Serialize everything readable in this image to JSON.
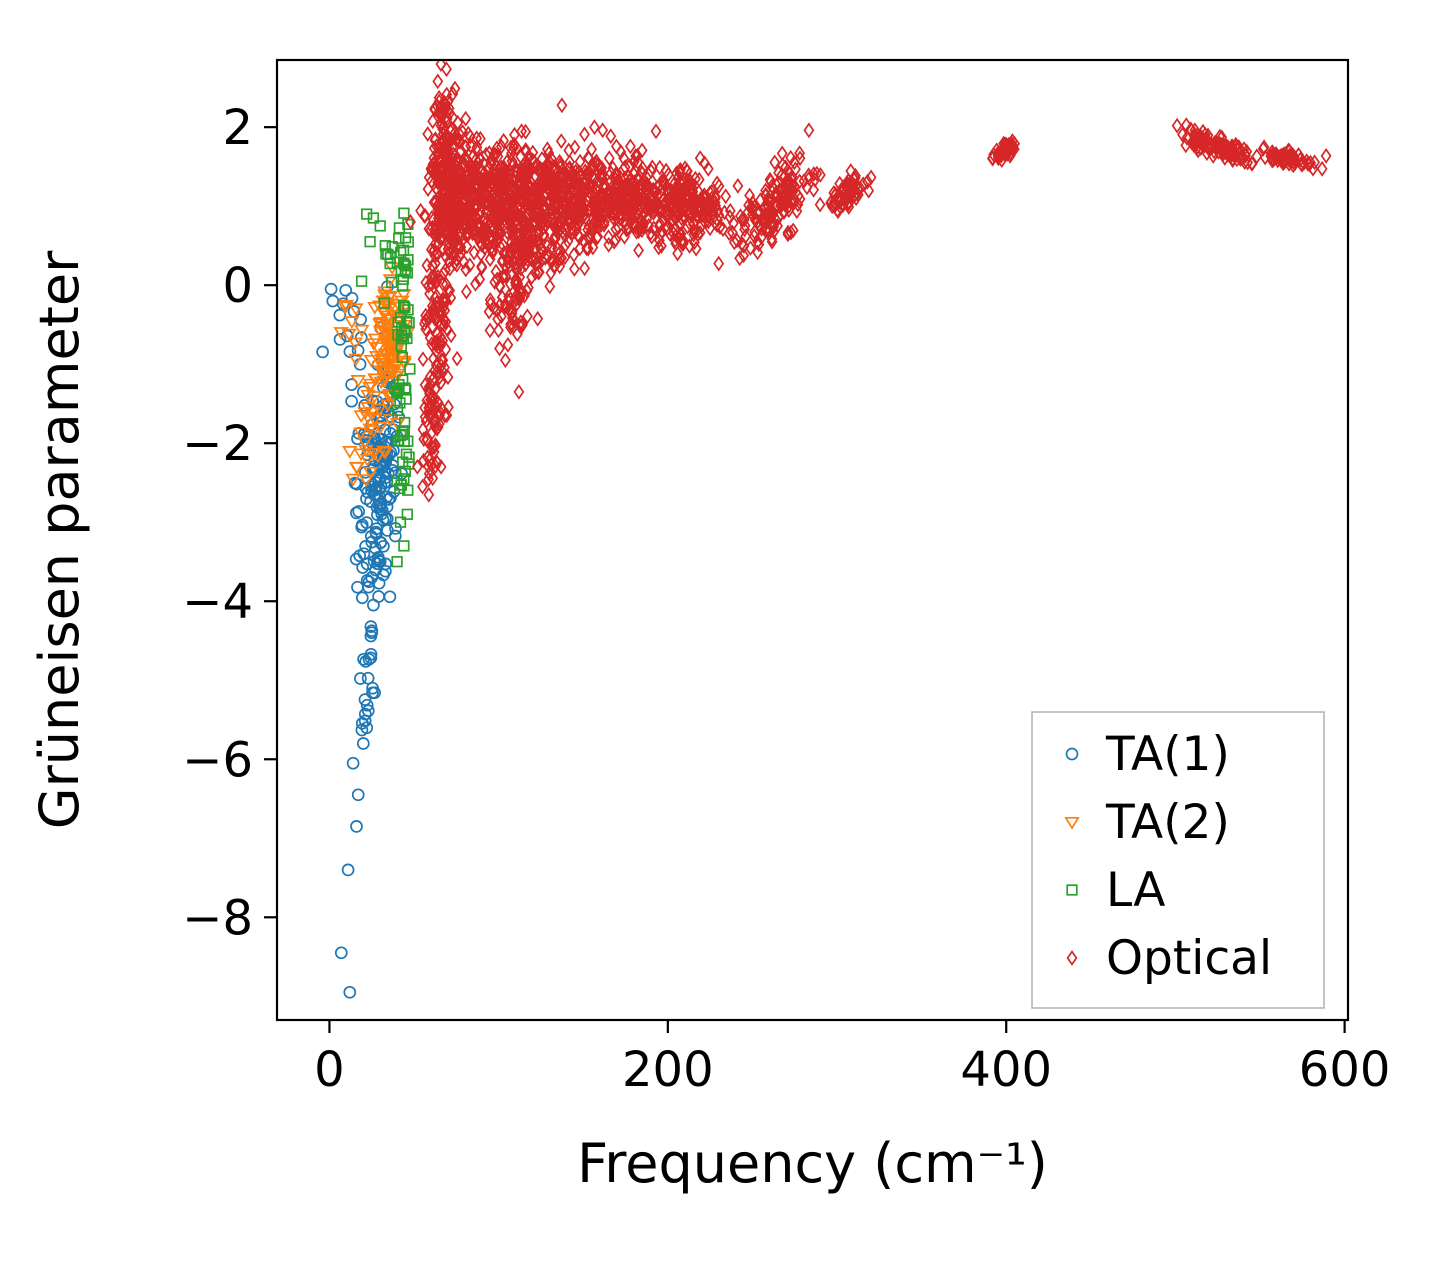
{
  "figure": {
    "background": "#ffffff"
  },
  "chart_data": {
    "type": "scatter",
    "title": "",
    "xlabel": "Frequency (cm⁻¹)",
    "ylabel": "Grüneisen parameter",
    "xlim": [
      -31,
      602
    ],
    "ylim": [
      -9.3,
      2.85
    ],
    "xticks": [
      0,
      200,
      400,
      600
    ],
    "yticks": [
      2,
      0,
      -2,
      -4,
      -6,
      -8
    ],
    "grid": false,
    "legend": {
      "position": "lower right",
      "border_color": "#b0b0b0",
      "background": "#ffffff"
    },
    "series": [
      {
        "name": "TA(1)",
        "marker": "circle",
        "color": "#1f77b4",
        "clusters": [
          {
            "n": 60,
            "cx": 33,
            "cy": -1.9,
            "sx": 4,
            "sy": 0.5
          },
          {
            "n": 45,
            "cx": 30,
            "cy": -2.6,
            "sx": 5,
            "sy": 0.5
          },
          {
            "n": 25,
            "cx": 22,
            "cy": -2.1,
            "sx": 5,
            "sy": 0.6
          },
          {
            "n": 20,
            "cx": 27,
            "cy": -3.2,
            "sx": 4,
            "sy": 0.3
          },
          {
            "n": 12,
            "cx": 24,
            "cy": -4.0,
            "sx": 4,
            "sy": 0.25
          },
          {
            "n": 10,
            "cx": 22,
            "cy": -4.7,
            "sx": 3,
            "sy": 0.25
          },
          {
            "n": 8,
            "cx": 21,
            "cy": -5.4,
            "sx": 2,
            "sy": 0.2
          },
          {
            "n": 10,
            "cx": 15,
            "cy": -1.0,
            "sx": 5,
            "sy": 0.5
          },
          {
            "n": 6,
            "cx": 8,
            "cy": -0.45,
            "sx": 4,
            "sy": 0.25
          }
        ],
        "points": [
          [
            1,
            -0.05
          ],
          [
            2,
            -0.2
          ],
          [
            14,
            -6.05
          ],
          [
            17,
            -6.45
          ],
          [
            16,
            -6.85
          ],
          [
            11,
            -7.4
          ],
          [
            7,
            -8.45
          ],
          [
            12,
            -8.95
          ],
          [
            25,
            -3.7
          ],
          [
            30,
            -3.5
          ],
          [
            20,
            -5.8
          ],
          [
            22,
            -5.6
          ]
        ]
      },
      {
        "name": "TA(2)",
        "marker": "triangle-down",
        "color": "#ff7f0e",
        "clusters": [
          {
            "n": 70,
            "cx": 36,
            "cy": -0.75,
            "sx": 4,
            "sy": 0.35
          },
          {
            "n": 30,
            "cx": 30,
            "cy": -1.4,
            "sx": 5,
            "sy": 0.4
          },
          {
            "n": 12,
            "cx": 22,
            "cy": -1.9,
            "sx": 4,
            "sy": 0.3
          },
          {
            "n": 8,
            "cx": 14,
            "cy": -0.5,
            "sx": 3,
            "sy": 0.3
          },
          {
            "n": 10,
            "cx": 34,
            "cy": -0.25,
            "sx": 4,
            "sy": 0.15
          }
        ],
        "points": [
          [
            12,
            -2.1
          ],
          [
            16,
            -2.3
          ],
          [
            14,
            -2.45
          ],
          [
            10,
            -0.25
          ],
          [
            44,
            -0.35
          ],
          [
            46,
            -0.6
          ]
        ]
      },
      {
        "name": "LA",
        "marker": "square",
        "color": "#2ca02c",
        "clusters": [
          {
            "n": 45,
            "cx": 43,
            "cy": -0.7,
            "sx": 2.5,
            "sy": 0.8
          },
          {
            "n": 15,
            "cx": 44,
            "cy": -2.2,
            "sx": 2,
            "sy": 0.4
          },
          {
            "n": 12,
            "cx": 38,
            "cy": 0.15,
            "sx": 4,
            "sy": 0.25
          }
        ],
        "points": [
          [
            22,
            0.9
          ],
          [
            26,
            0.85
          ],
          [
            30,
            0.75
          ],
          [
            24,
            0.55
          ],
          [
            33,
            0.5
          ],
          [
            36,
            0.35
          ],
          [
            19,
            0.05
          ],
          [
            42,
            -3.0
          ],
          [
            44,
            -3.3
          ],
          [
            40,
            -3.5
          ],
          [
            46,
            -2.9
          ],
          [
            45,
            0.6
          ]
        ]
      },
      {
        "name": "Optical",
        "marker": "diamond",
        "color": "#d62728",
        "clusters": [
          {
            "n": 160,
            "cx": 68,
            "cy": 1.55,
            "sx": 4,
            "sy": 0.45
          },
          {
            "n": 240,
            "cx": 76,
            "cy": 1.0,
            "sx": 8,
            "sy": 0.4
          },
          {
            "n": 110,
            "cx": 64,
            "cy": -0.3,
            "sx": 4,
            "sy": 0.7
          },
          {
            "n": 55,
            "cx": 61,
            "cy": -1.7,
            "sx": 3.5,
            "sy": 0.45
          },
          {
            "n": 340,
            "cx": 100,
            "cy": 1.05,
            "sx": 14,
            "sy": 0.35
          },
          {
            "n": 340,
            "cx": 136,
            "cy": 1.15,
            "sx": 18,
            "sy": 0.3
          },
          {
            "n": 300,
            "cx": 176,
            "cy": 1.1,
            "sx": 20,
            "sy": 0.25
          },
          {
            "n": 170,
            "cx": 213,
            "cy": 1.0,
            "sx": 12,
            "sy": 0.22
          },
          {
            "n": 75,
            "cx": 108,
            "cy": -0.12,
            "sx": 7,
            "sy": 0.3
          },
          {
            "n": 90,
            "cx": 122,
            "cy": 0.45,
            "sx": 13,
            "sy": 0.2
          },
          {
            "n": 160,
            "cx": 262,
            "cy": 1.0,
            "sx": 11,
            "sy": 0.22,
            "slope": 0.018
          },
          {
            "n": 70,
            "cx": 306,
            "cy": 1.15,
            "sx": 5,
            "sy": 0.1,
            "slope": 0.012
          },
          {
            "n": 45,
            "cx": 399,
            "cy": 1.71,
            "sx": 3.5,
            "sy": 0.05,
            "slope": 0.01
          },
          {
            "n": 70,
            "cx": 517,
            "cy": 1.8,
            "sx": 7,
            "sy": 0.06,
            "slope": -0.006
          },
          {
            "n": 55,
            "cx": 534,
            "cy": 1.69,
            "sx": 6,
            "sy": 0.06,
            "slope": -0.008
          },
          {
            "n": 65,
            "cx": 566,
            "cy": 1.61,
            "sx": 9,
            "sy": 0.05,
            "slope": -0.004
          }
        ],
        "points": [
          [
            70,
            2.32
          ],
          [
            66,
            2.25
          ],
          [
            112,
            -1.35
          ],
          [
            104,
            -0.95
          ],
          [
            246,
            0.62
          ],
          [
            290,
            1.02
          ],
          [
            52,
            -2.3
          ],
          [
            55,
            -2.55
          ]
        ]
      }
    ]
  }
}
